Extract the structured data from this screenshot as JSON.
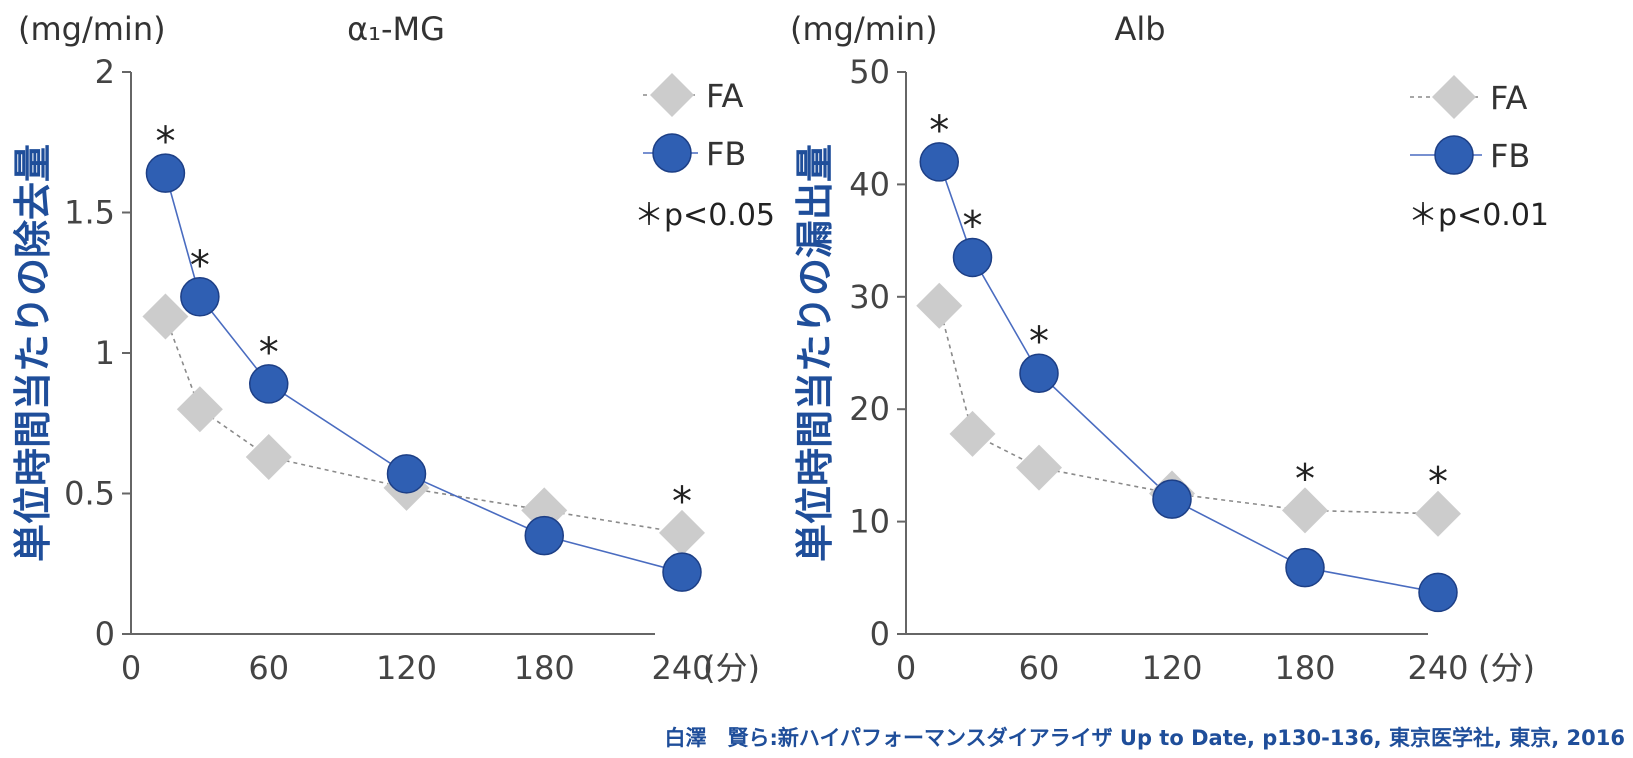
{
  "source_credit": "白澤　賢ら:新ハイパフォーマンスダイアライザ Up to Date, p130-136, 東京医学社, 東京, 2016",
  "chart_data": [
    {
      "type": "line",
      "title": "α₁-MG",
      "unit": "(mg/min)",
      "ylabel": "単位時間当たりの除去量",
      "x_unit": "(分)",
      "xlim": [
        0,
        255
      ],
      "ylim": [
        0,
        2
      ],
      "xticks": [
        "0",
        "60",
        "120",
        "180",
        "240"
      ],
      "yticks": [
        "0",
        "0.5",
        "1",
        "1.5",
        "2"
      ],
      "grid": false,
      "legend": "top-right",
      "significance_note": "＊p<0.05",
      "series": [
        {
          "name": "FA",
          "color": "#cccccc",
          "marker": "diamond",
          "x": [
            15,
            30,
            60,
            120,
            180,
            240
          ],
          "y": [
            1.13,
            0.8,
            0.63,
            0.52,
            0.44,
            0.36
          ]
        },
        {
          "name": "FB",
          "color": "#2f5fb3",
          "marker": "circle",
          "x": [
            15,
            30,
            60,
            120,
            180,
            240
          ],
          "y": [
            1.64,
            1.2,
            0.89,
            0.57,
            0.35,
            0.22
          ]
        }
      ],
      "significant_x": [
        15,
        30,
        60,
        240
      ]
    },
    {
      "type": "line",
      "title": "Alb",
      "unit": "(mg/min)",
      "ylabel": "単位時間当たりの漏出量",
      "x_unit": "(分)",
      "xlim": [
        0,
        255
      ],
      "ylim": [
        0,
        50
      ],
      "xticks": [
        "0",
        "60",
        "120",
        "180",
        "240"
      ],
      "yticks": [
        "0",
        "10",
        "20",
        "30",
        "40",
        "50"
      ],
      "grid": false,
      "legend": "top-right",
      "significance_note": "＊p<0.01",
      "series": [
        {
          "name": "FA",
          "color": "#cccccc",
          "marker": "diamond",
          "x": [
            15,
            30,
            60,
            120,
            180,
            240
          ],
          "y": [
            29.2,
            17.8,
            14.8,
            12.5,
            11.0,
            10.7
          ]
        },
        {
          "name": "FB",
          "color": "#2f5fb3",
          "marker": "circle",
          "x": [
            15,
            30,
            60,
            120,
            180,
            240
          ],
          "y": [
            42.0,
            33.5,
            23.2,
            12.0,
            5.9,
            3.7
          ]
        }
      ],
      "significant_x": [
        15,
        30,
        60,
        180,
        240
      ]
    }
  ]
}
